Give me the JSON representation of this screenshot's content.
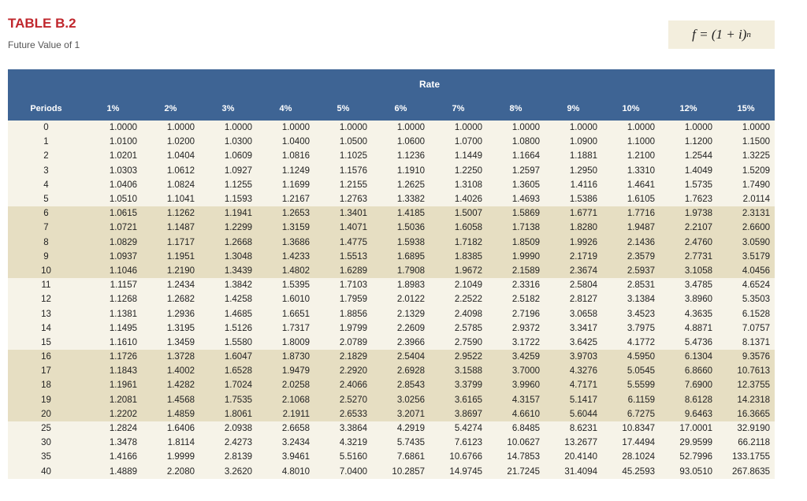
{
  "header": {
    "title": "TABLE B.2",
    "subtitle": "Future Value of 1",
    "formula": {
      "base": "f = (1 + i)",
      "exponent": "n"
    }
  },
  "table": {
    "group_header": "Rate",
    "row_header": "Periods",
    "columns": [
      "1%",
      "2%",
      "3%",
      "4%",
      "5%",
      "6%",
      "7%",
      "8%",
      "9%",
      "10%",
      "12%",
      "15%"
    ],
    "rows": [
      {
        "period": "0",
        "values": [
          "1.0000",
          "1.0000",
          "1.0000",
          "1.0000",
          "1.0000",
          "1.0000",
          "1.0000",
          "1.0000",
          "1.0000",
          "1.0000",
          "1.0000",
          "1.0000"
        ]
      },
      {
        "period": "1",
        "values": [
          "1.0100",
          "1.0200",
          "1.0300",
          "1.0400",
          "1.0500",
          "1.0600",
          "1.0700",
          "1.0800",
          "1.0900",
          "1.1000",
          "1.1200",
          "1.1500"
        ]
      },
      {
        "period": "2",
        "values": [
          "1.0201",
          "1.0404",
          "1.0609",
          "1.0816",
          "1.1025",
          "1.1236",
          "1.1449",
          "1.1664",
          "1.1881",
          "1.2100",
          "1.2544",
          "1.3225"
        ]
      },
      {
        "period": "3",
        "values": [
          "1.0303",
          "1.0612",
          "1.0927",
          "1.1249",
          "1.1576",
          "1.1910",
          "1.2250",
          "1.2597",
          "1.2950",
          "1.3310",
          "1.4049",
          "1.5209"
        ]
      },
      {
        "period": "4",
        "values": [
          "1.0406",
          "1.0824",
          "1.1255",
          "1.1699",
          "1.2155",
          "1.2625",
          "1.3108",
          "1.3605",
          "1.4116",
          "1.4641",
          "1.5735",
          "1.7490"
        ]
      },
      {
        "period": "5",
        "values": [
          "1.0510",
          "1.1041",
          "1.1593",
          "1.2167",
          "1.2763",
          "1.3382",
          "1.4026",
          "1.4693",
          "1.5386",
          "1.6105",
          "1.7623",
          "2.0114"
        ]
      },
      {
        "period": "6",
        "values": [
          "1.0615",
          "1.1262",
          "1.1941",
          "1.2653",
          "1.3401",
          "1.4185",
          "1.5007",
          "1.5869",
          "1.6771",
          "1.7716",
          "1.9738",
          "2.3131"
        ]
      },
      {
        "period": "7",
        "values": [
          "1.0721",
          "1.1487",
          "1.2299",
          "1.3159",
          "1.4071",
          "1.5036",
          "1.6058",
          "1.7138",
          "1.8280",
          "1.9487",
          "2.2107",
          "2.6600"
        ]
      },
      {
        "period": "8",
        "values": [
          "1.0829",
          "1.1717",
          "1.2668",
          "1.3686",
          "1.4775",
          "1.5938",
          "1.7182",
          "1.8509",
          "1.9926",
          "2.1436",
          "2.4760",
          "3.0590"
        ]
      },
      {
        "period": "9",
        "values": [
          "1.0937",
          "1.1951",
          "1.3048",
          "1.4233",
          "1.5513",
          "1.6895",
          "1.8385",
          "1.9990",
          "2.1719",
          "2.3579",
          "2.7731",
          "3.5179"
        ]
      },
      {
        "period": "10",
        "values": [
          "1.1046",
          "1.2190",
          "1.3439",
          "1.4802",
          "1.6289",
          "1.7908",
          "1.9672",
          "2.1589",
          "2.3674",
          "2.5937",
          "3.1058",
          "4.0456"
        ]
      },
      {
        "period": "11",
        "values": [
          "1.1157",
          "1.2434",
          "1.3842",
          "1.5395",
          "1.7103",
          "1.8983",
          "2.1049",
          "2.3316",
          "2.5804",
          "2.8531",
          "3.4785",
          "4.6524"
        ]
      },
      {
        "period": "12",
        "values": [
          "1.1268",
          "1.2682",
          "1.4258",
          "1.6010",
          "1.7959",
          "2.0122",
          "2.2522",
          "2.5182",
          "2.8127",
          "3.1384",
          "3.8960",
          "5.3503"
        ]
      },
      {
        "period": "13",
        "values": [
          "1.1381",
          "1.2936",
          "1.4685",
          "1.6651",
          "1.8856",
          "2.1329",
          "2.4098",
          "2.7196",
          "3.0658",
          "3.4523",
          "4.3635",
          "6.1528"
        ]
      },
      {
        "period": "14",
        "values": [
          "1.1495",
          "1.3195",
          "1.5126",
          "1.7317",
          "1.9799",
          "2.2609",
          "2.5785",
          "2.9372",
          "3.3417",
          "3.7975",
          "4.8871",
          "7.0757"
        ]
      },
      {
        "period": "15",
        "values": [
          "1.1610",
          "1.3459",
          "1.5580",
          "1.8009",
          "2.0789",
          "2.3966",
          "2.7590",
          "3.1722",
          "3.6425",
          "4.1772",
          "5.4736",
          "8.1371"
        ]
      },
      {
        "period": "16",
        "values": [
          "1.1726",
          "1.3728",
          "1.6047",
          "1.8730",
          "2.1829",
          "2.5404",
          "2.9522",
          "3.4259",
          "3.9703",
          "4.5950",
          "6.1304",
          "9.3576"
        ]
      },
      {
        "period": "17",
        "values": [
          "1.1843",
          "1.4002",
          "1.6528",
          "1.9479",
          "2.2920",
          "2.6928",
          "3.1588",
          "3.7000",
          "4.3276",
          "5.0545",
          "6.8660",
          "10.7613"
        ]
      },
      {
        "period": "18",
        "values": [
          "1.1961",
          "1.4282",
          "1.7024",
          "2.0258",
          "2.4066",
          "2.8543",
          "3.3799",
          "3.9960",
          "4.7171",
          "5.5599",
          "7.6900",
          "12.3755"
        ]
      },
      {
        "period": "19",
        "values": [
          "1.2081",
          "1.4568",
          "1.7535",
          "2.1068",
          "2.5270",
          "3.0256",
          "3.6165",
          "4.3157",
          "5.1417",
          "6.1159",
          "8.6128",
          "14.2318"
        ]
      },
      {
        "period": "20",
        "values": [
          "1.2202",
          "1.4859",
          "1.8061",
          "2.1911",
          "2.6533",
          "3.2071",
          "3.8697",
          "4.6610",
          "5.6044",
          "6.7275",
          "9.6463",
          "16.3665"
        ]
      },
      {
        "period": "25",
        "values": [
          "1.2824",
          "1.6406",
          "2.0938",
          "2.6658",
          "3.3864",
          "4.2919",
          "5.4274",
          "6.8485",
          "8.6231",
          "10.8347",
          "17.0001",
          "32.9190"
        ]
      },
      {
        "period": "30",
        "values": [
          "1.3478",
          "1.8114",
          "2.4273",
          "3.2434",
          "4.3219",
          "5.7435",
          "7.6123",
          "10.0627",
          "13.2677",
          "17.4494",
          "29.9599",
          "66.2118"
        ]
      },
      {
        "period": "35",
        "values": [
          "1.4166",
          "1.9999",
          "2.8139",
          "3.9461",
          "5.5160",
          "7.6861",
          "10.6766",
          "14.7853",
          "20.4140",
          "28.1024",
          "52.7996",
          "133.1755"
        ]
      },
      {
        "period": "40",
        "values": [
          "1.4889",
          "2.2080",
          "3.2620",
          "4.8010",
          "7.0400",
          "10.2857",
          "14.9745",
          "21.7245",
          "31.4094",
          "45.2593",
          "93.0510",
          "267.8635"
        ]
      }
    ]
  }
}
